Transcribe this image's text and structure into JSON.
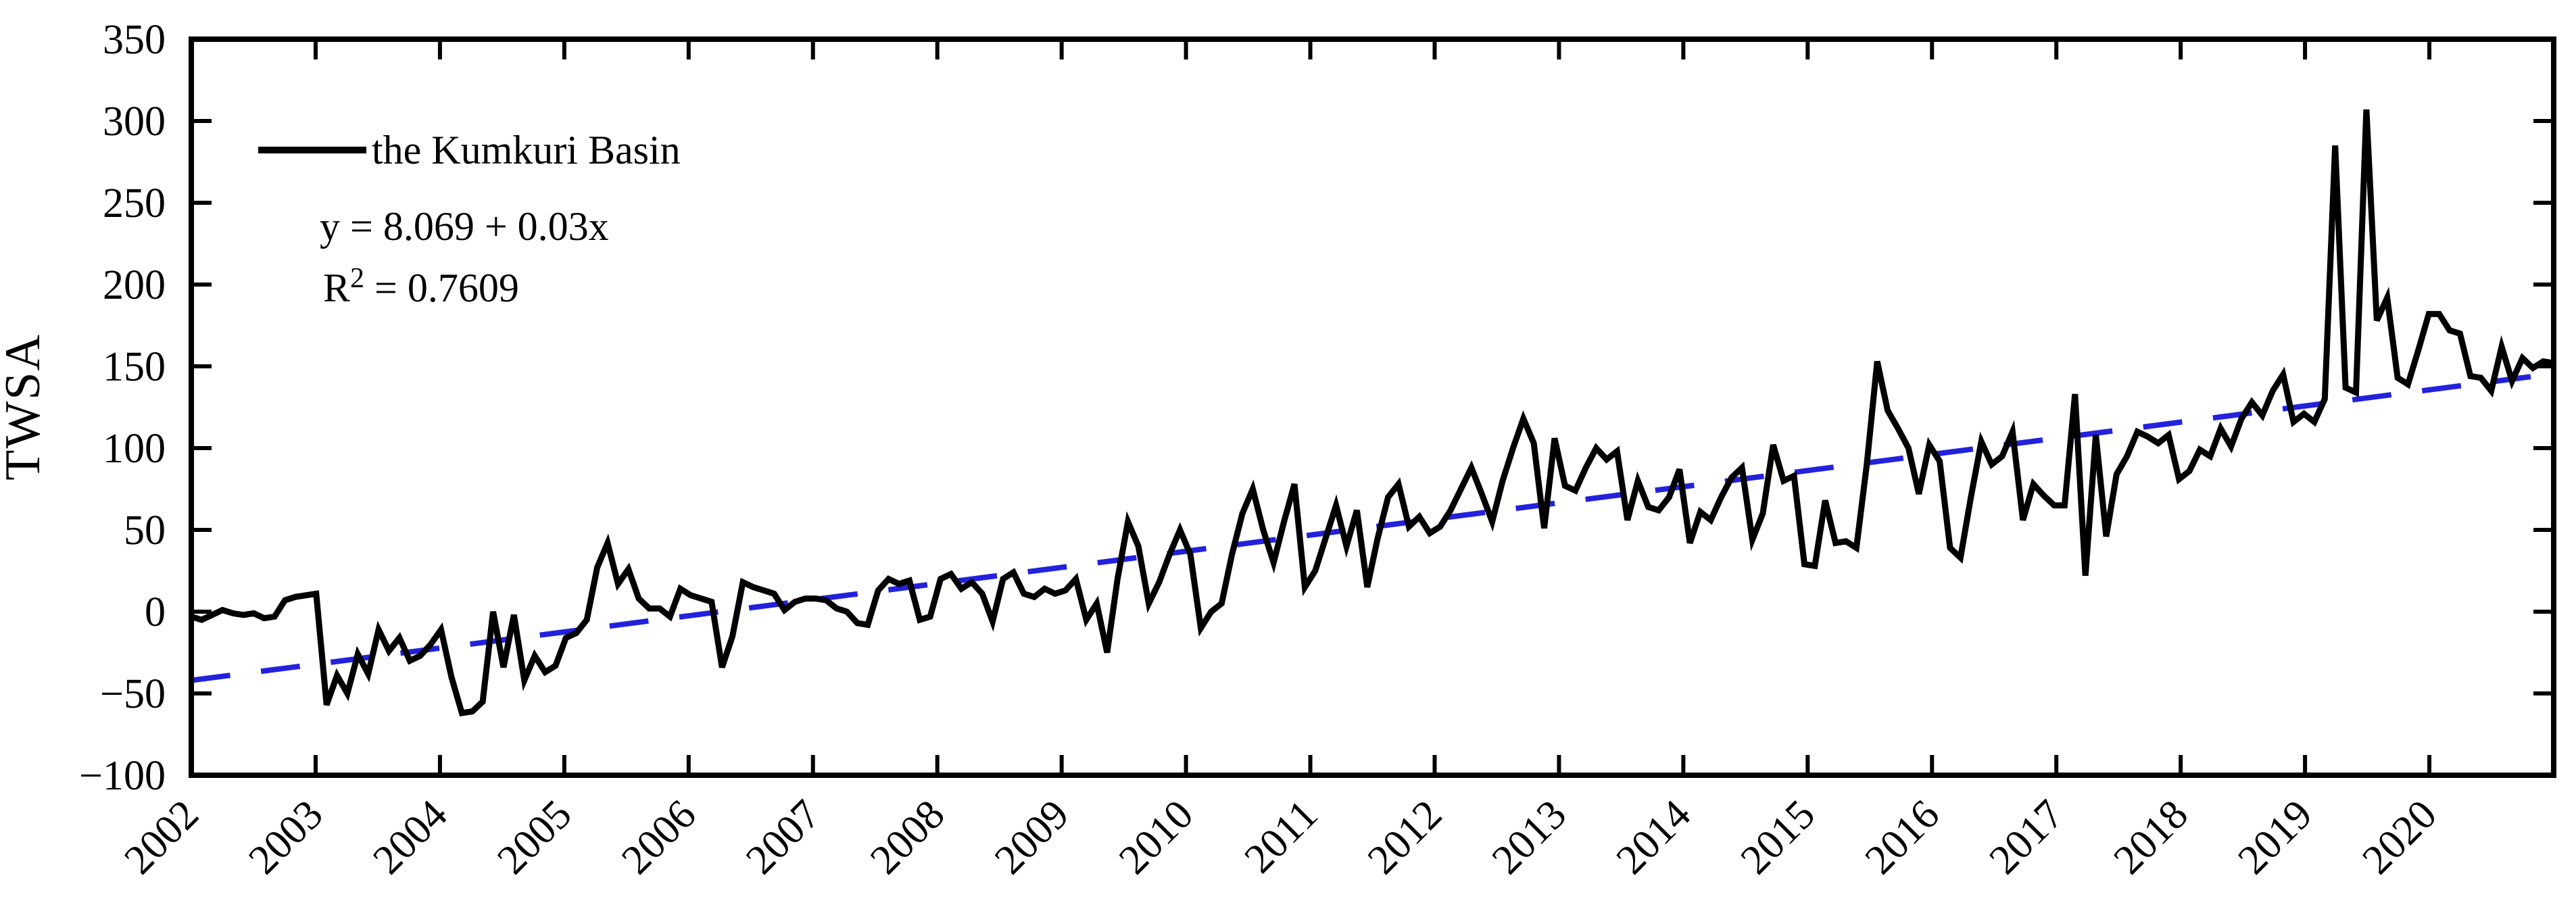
{
  "figure": {
    "ylabel": "TWSA",
    "legend": {
      "series_label": "the Kumkuri Basin"
    },
    "equation": {
      "text": "y = 8.069 + 0.03x"
    },
    "r_squared": {
      "base": "R",
      "sup": "2",
      "rest": " = 0.7609",
      "display": "R2 = 0.7609"
    },
    "colors": {
      "series": "#000000",
      "trend": "#2222dd",
      "axis": "#000000",
      "background": "#ffffff",
      "text": "#000000"
    }
  },
  "chart_data": {
    "type": "line",
    "title": "",
    "xlabel": "",
    "ylabel": "TWSA",
    "grid": false,
    "legend_position": "upper-left-inside",
    "xlim": [
      2002,
      2021
    ],
    "ylim": [
      -100,
      350
    ],
    "x_tick_labels": [
      "2002",
      "2003",
      "2004",
      "2005",
      "2006",
      "2007",
      "2008",
      "2009",
      "2010",
      "2011",
      "2012",
      "2013",
      "2014",
      "2015",
      "2016",
      "2017",
      "2018",
      "2019",
      "2020"
    ],
    "x_tick_years": [
      2002,
      2003,
      2004,
      2005,
      2006,
      2007,
      2008,
      2009,
      2010,
      2011,
      2012,
      2013,
      2014,
      2015,
      2016,
      2017,
      2018,
      2019,
      2020
    ],
    "y_tick_labels": [
      "350",
      "300",
      "250",
      "200",
      "150",
      "100",
      "50",
      "0",
      "−50",
      "−100"
    ],
    "y_tick_values": [
      350,
      300,
      250,
      200,
      150,
      100,
      50,
      0,
      -50,
      -100
    ],
    "series": [
      {
        "name": "the Kumkuri Basin",
        "style": "solid",
        "color": "#000000",
        "x_start_year": 2002.0,
        "x_step": "monthly",
        "values": [
          -3,
          -5,
          -2,
          1,
          -1,
          -2,
          -1,
          -4,
          -3,
          7,
          9,
          10,
          11,
          -57,
          -39,
          -50,
          -26,
          -38,
          -11,
          -24,
          -16,
          -30,
          -27,
          -20,
          -11,
          -40,
          -62,
          -61,
          -55,
          0,
          -34,
          -2,
          -42,
          -27,
          -37,
          -33,
          -16,
          -13,
          -5,
          27,
          42,
          17,
          26,
          8,
          2,
          2,
          -3,
          14,
          10,
          8,
          6,
          -34,
          -15,
          18,
          15,
          13,
          11,
          1,
          6,
          8,
          8,
          7,
          2,
          0,
          -7,
          -8,
          13,
          20,
          17,
          19,
          -5,
          -3,
          20,
          23,
          14,
          18,
          11,
          -6,
          20,
          24,
          11,
          9,
          14,
          11,
          13,
          20,
          -5,
          5,
          -25,
          20,
          55,
          40,
          5,
          18,
          35,
          50,
          35,
          -10,
          0,
          5,
          35,
          60,
          75,
          50,
          30,
          55,
          78,
          15,
          25,
          45,
          65,
          40,
          62,
          15,
          45,
          70,
          78,
          52,
          58,
          48,
          52,
          62,
          75,
          88,
          72,
          55,
          80,
          100,
          118,
          103,
          51,
          106,
          77,
          74,
          88,
          100,
          93,
          98,
          56,
          80,
          64,
          62,
          70,
          87,
          42,
          61,
          56,
          70,
          82,
          88,
          44,
          60,
          102,
          80,
          83,
          29,
          28,
          68,
          42,
          43,
          39,
          90,
          153,
          123,
          112,
          100,
          72,
          102,
          92,
          39,
          33,
          70,
          104,
          90,
          95,
          110,
          56,
          78,
          71,
          65,
          65,
          133,
          22,
          108,
          46,
          84,
          95,
          110,
          107,
          103,
          108,
          81,
          86,
          99,
          95,
          112,
          101,
          118,
          128,
          120,
          135,
          145,
          116,
          121,
          116,
          130,
          285,
          137,
          134,
          307,
          178,
          192,
          143,
          139,
          160,
          182,
          182,
          172,
          170,
          144,
          143,
          135,
          162,
          141,
          155,
          149,
          153,
          152
        ]
      },
      {
        "name": "linear trend",
        "style": "dashed",
        "color": "#2222dd",
        "equation": "y = 8.069 + 0.03x",
        "r2": 0.7609,
        "points_xy": [
          [
            2002.0,
            -42.0
          ],
          [
            2021.0,
            145.5
          ]
        ]
      }
    ]
  }
}
